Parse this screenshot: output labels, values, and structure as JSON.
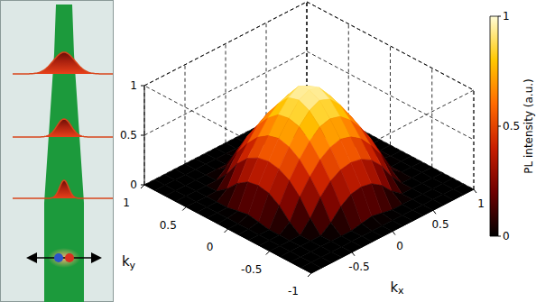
{
  "chart_data": {
    "type": "surface3d",
    "x_label": "kx",
    "y_label": "ky",
    "xlim": [
      -1,
      1
    ],
    "ylim": [
      -1,
      1
    ],
    "zlim": [
      0,
      1
    ],
    "xticks": [
      -0.5,
      0,
      0.5,
      1
    ],
    "yticks": [
      -1,
      -0.5,
      0,
      0.5,
      1
    ],
    "zticks": [
      0,
      0.5,
      1
    ],
    "grid": true,
    "x": [
      -1,
      -0.875,
      -0.75,
      -0.625,
      -0.5,
      -0.375,
      -0.25,
      -0.125,
      0,
      0.125,
      0.25,
      0.375,
      0.5,
      0.625,
      0.75,
      0.875,
      1
    ],
    "y": [
      -1,
      -0.875,
      -0.75,
      -0.625,
      -0.5,
      -0.375,
      -0.25,
      -0.125,
      0,
      0.125,
      0.25,
      0.375,
      0.5,
      0.625,
      0.75,
      0.875,
      1
    ],
    "z": [
      [
        0,
        0,
        0,
        0,
        0,
        0,
        0,
        0,
        0,
        0,
        0,
        0,
        0,
        0,
        0,
        0,
        0
      ],
      [
        0,
        0,
        0,
        0,
        0,
        0,
        0,
        0,
        0,
        0,
        0,
        0,
        0,
        0,
        0,
        0,
        0
      ],
      [
        0,
        0,
        0,
        0,
        0,
        0,
        0,
        0.02,
        0.04,
        0.02,
        0,
        0,
        0,
        0,
        0,
        0,
        0
      ],
      [
        0,
        0,
        0,
        0,
        0,
        0.08,
        0.19,
        0.26,
        0.28,
        0.26,
        0.19,
        0.08,
        0,
        0,
        0,
        0,
        0
      ],
      [
        0,
        0,
        0,
        0,
        0.12,
        0.28,
        0.39,
        0.45,
        0.47,
        0.45,
        0.39,
        0.28,
        0.12,
        0,
        0,
        0,
        0
      ],
      [
        0,
        0,
        0,
        0.08,
        0.28,
        0.43,
        0.55,
        0.62,
        0.65,
        0.62,
        0.55,
        0.43,
        0.28,
        0.08,
        0,
        0,
        0
      ],
      [
        0,
        0,
        0,
        0.19,
        0.39,
        0.55,
        0.68,
        0.77,
        0.8,
        0.77,
        0.68,
        0.55,
        0.39,
        0.19,
        0,
        0,
        0
      ],
      [
        0,
        0,
        0.02,
        0.26,
        0.45,
        0.62,
        0.77,
        0.88,
        0.93,
        0.89,
        0.78,
        0.62,
        0.45,
        0.26,
        0.02,
        0,
        0
      ],
      [
        0,
        0,
        0.04,
        0.28,
        0.47,
        0.65,
        0.8,
        0.93,
        0.98,
        0.95,
        0.82,
        0.66,
        0.47,
        0.28,
        0.04,
        0,
        0
      ],
      [
        0,
        0,
        0.02,
        0.26,
        0.45,
        0.62,
        0.78,
        0.9,
        0.96,
        0.91,
        0.79,
        0.63,
        0.45,
        0.26,
        0.02,
        0,
        0
      ],
      [
        0,
        0,
        0,
        0.19,
        0.39,
        0.55,
        0.69,
        0.78,
        0.82,
        0.78,
        0.69,
        0.56,
        0.4,
        0.19,
        0,
        0,
        0
      ],
      [
        0,
        0,
        0,
        0.08,
        0.28,
        0.43,
        0.56,
        0.63,
        0.66,
        0.63,
        0.56,
        0.44,
        0.28,
        0.08,
        0,
        0,
        0
      ],
      [
        0,
        0,
        0,
        0,
        0.12,
        0.28,
        0.39,
        0.45,
        0.48,
        0.46,
        0.4,
        0.28,
        0.12,
        0,
        0,
        0,
        0
      ],
      [
        0,
        0,
        0,
        0,
        0,
        0.08,
        0.19,
        0.26,
        0.28,
        0.26,
        0.19,
        0.08,
        0,
        0,
        0,
        0,
        0
      ],
      [
        0,
        0,
        0,
        0,
        0,
        0,
        0,
        0.02,
        0.04,
        0.02,
        0,
        0,
        0,
        0,
        0,
        0,
        0
      ],
      [
        0,
        0,
        0,
        0,
        0,
        0,
        0,
        0,
        0,
        0,
        0,
        0,
        0,
        0,
        0,
        0,
        0
      ],
      [
        0,
        0,
        0,
        0,
        0,
        0,
        0,
        0,
        0,
        0,
        0,
        0,
        0,
        0,
        0,
        0,
        0
      ]
    ],
    "colorbar": {
      "label": "PL intensity (a.u.)",
      "range": [
        0,
        1
      ],
      "ticks": [
        0,
        0.5,
        1
      ]
    }
  }
}
